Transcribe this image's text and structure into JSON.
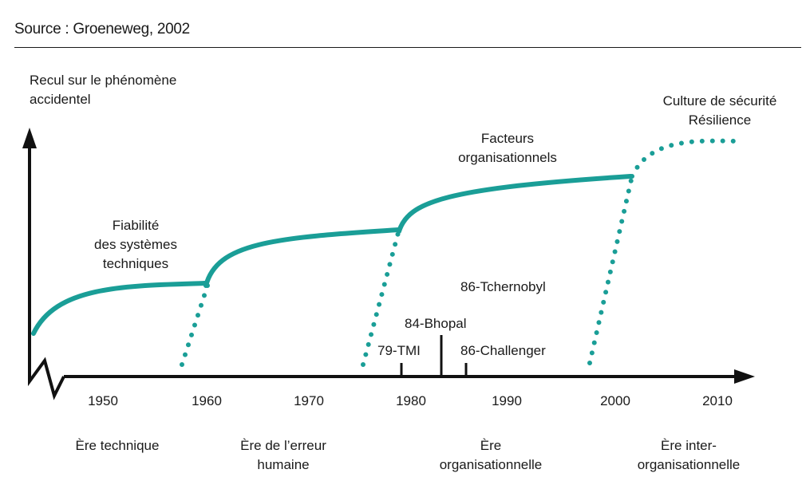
{
  "source": "Source : Groeneweg, 2002",
  "y_axis_label": [
    "Recul sur le phénomène",
    "accidentel"
  ],
  "curve_labels": {
    "fiabilite": [
      "Fiabilité",
      "des systèmes",
      "techniques"
    ],
    "facteurs": [
      "Facteurs",
      "organisationnels"
    ],
    "culture": [
      "Culture de sécurité",
      "Résilience"
    ]
  },
  "years": [
    "1950",
    "1960",
    "1970",
    "1980",
    "1990",
    "2000",
    "2010"
  ],
  "events": {
    "tmi": "79-TMI",
    "bhopal": "84-Bhopal",
    "challenger": "86-Challenger",
    "tchernobyl": "86-Tchernobyl"
  },
  "eras": {
    "technique": [
      "Ère technique"
    ],
    "erreur_humaine": [
      "Ère de l’erreur",
      "humaine"
    ],
    "organisationnelle": [
      "Ère",
      "organisationnelle"
    ],
    "inter_organisationnelle": [
      "Ère inter-",
      "organisationnelle"
    ]
  },
  "colors": {
    "curve": "#1a9e97",
    "axis": "#111111",
    "text": "#1a1a1a"
  }
}
